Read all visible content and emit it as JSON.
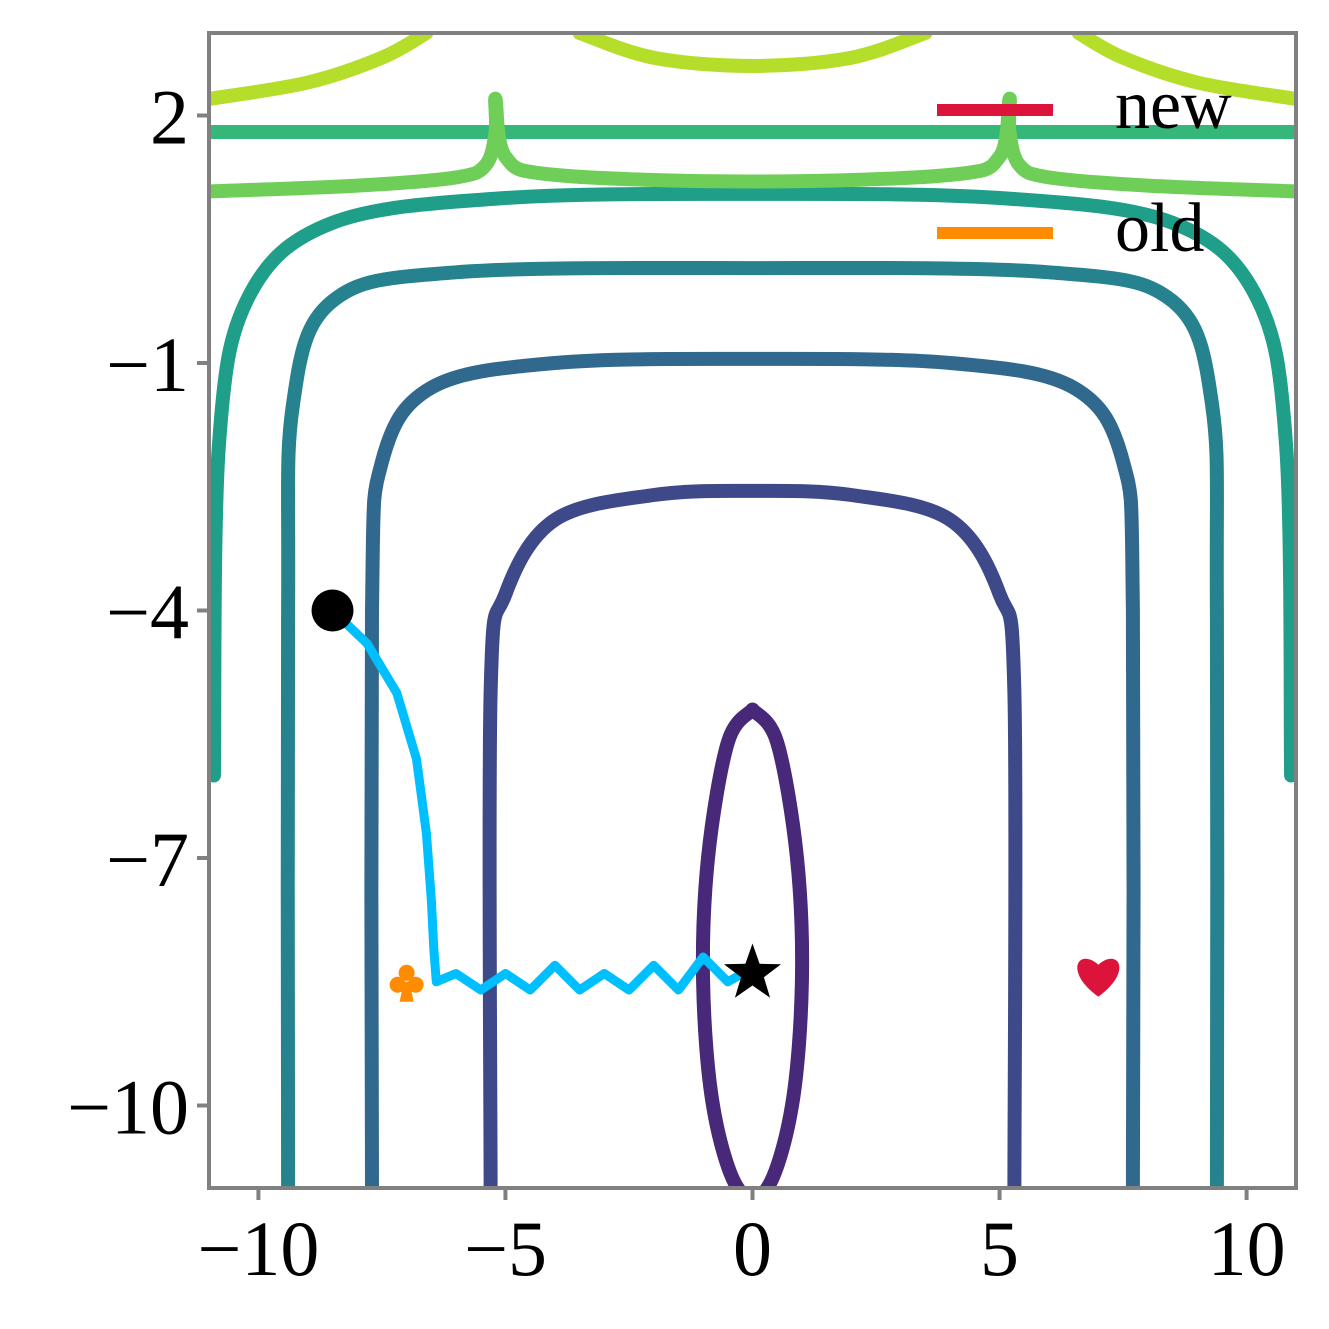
{
  "chart_data": {
    "type": "contour",
    "title": "",
    "xlabel": "",
    "ylabel": "",
    "xlim": [
      -11,
      11
    ],
    "ylim": [
      -11,
      3
    ],
    "grid": false,
    "legend": {
      "placement": "top-right",
      "entries": [
        {
          "label": "new",
          "color": "#dc143c"
        },
        {
          "label": "old",
          "color": "#ff8c00"
        }
      ]
    },
    "x_ticks": [
      {
        "value": -10,
        "label": "−10"
      },
      {
        "value": -5,
        "label": "−5"
      },
      {
        "value": 0,
        "label": "0"
      },
      {
        "value": 5,
        "label": "5"
      },
      {
        "value": 10,
        "label": "10"
      }
    ],
    "y_ticks": [
      {
        "value": 2,
        "label": "2"
      },
      {
        "value": -1,
        "label": "−1"
      },
      {
        "value": -4,
        "label": "−4"
      },
      {
        "value": -7,
        "label": "−7"
      },
      {
        "value": -10,
        "label": "−10"
      }
    ],
    "contours": [
      {
        "level": 1,
        "color": "#482878",
        "points": [
          [
            0,
            -5.2
          ],
          [
            0.5,
            -5.6
          ],
          [
            0.9,
            -7.0
          ],
          [
            1.0,
            -8.5
          ],
          [
            0.8,
            -10.0
          ],
          [
            0.3,
            -11.0
          ],
          [
            -0.3,
            -11.0
          ],
          [
            -0.8,
            -10.0
          ],
          [
            -1.0,
            -8.5
          ],
          [
            -0.9,
            -7.0
          ],
          [
            -0.5,
            -5.6
          ],
          [
            0,
            -5.2
          ]
        ]
      },
      {
        "level": 2,
        "color": "#3e4989",
        "points": [
          [
            -5.3,
            -11
          ],
          [
            -5.3,
            -5.0
          ],
          [
            -5.0,
            -3.8
          ],
          [
            -4.0,
            -2.9
          ],
          [
            -2.0,
            -2.6
          ],
          [
            0,
            -2.55
          ],
          [
            2.0,
            -2.6
          ],
          [
            4.0,
            -2.9
          ],
          [
            5.0,
            -3.8
          ],
          [
            5.3,
            -5.0
          ],
          [
            5.3,
            -11
          ]
        ]
      },
      {
        "level": 3,
        "color": "#31688e",
        "points": [
          [
            -7.7,
            -11
          ],
          [
            -7.7,
            -4.0
          ],
          [
            -7.5,
            -2.2
          ],
          [
            -6.5,
            -1.3
          ],
          [
            -4.0,
            -1.0
          ],
          [
            0,
            -0.95
          ],
          [
            4.0,
            -1.0
          ],
          [
            6.5,
            -1.3
          ],
          [
            7.5,
            -2.2
          ],
          [
            7.7,
            -4.0
          ],
          [
            7.7,
            -11
          ]
        ]
      },
      {
        "level": 4,
        "color": "#26828e",
        "points": [
          [
            -9.4,
            -11
          ],
          [
            -9.4,
            -4.0
          ],
          [
            -9.3,
            -1.5
          ],
          [
            -8.5,
            -0.25
          ],
          [
            -6.0,
            0.1
          ],
          [
            0,
            0.15
          ],
          [
            6.0,
            0.1
          ],
          [
            8.5,
            -0.25
          ],
          [
            9.3,
            -1.5
          ],
          [
            9.4,
            -4.0
          ],
          [
            9.4,
            -11
          ]
        ]
      },
      {
        "level": 5,
        "color": "#1f9e89",
        "points": [
          [
            -10.9,
            -6.0
          ],
          [
            -10.8,
            -2.0
          ],
          [
            -10.2,
            -0.2
          ],
          [
            -8.5,
            0.7
          ],
          [
            -5.0,
            1.0
          ],
          [
            0,
            1.05
          ],
          [
            5.0,
            1.0
          ],
          [
            8.5,
            0.7
          ],
          [
            10.2,
            -0.2
          ],
          [
            10.8,
            -2.0
          ],
          [
            10.9,
            -6.0
          ]
        ]
      },
      {
        "level": 6,
        "color": "#35b779",
        "points": [
          [
            -11,
            1.8
          ],
          [
            11,
            1.8
          ]
        ]
      },
      {
        "level": 7,
        "color": "#6ece58",
        "points": [
          [
            -11,
            1.08
          ],
          [
            -8,
            1.15
          ],
          [
            -6,
            1.25
          ],
          [
            -5.4,
            1.4
          ],
          [
            -5.2,
            1.8
          ],
          [
            -5.2,
            2.2
          ],
          [
            -5.0,
            1.5
          ],
          [
            -4.0,
            1.28
          ],
          [
            0,
            1.2
          ],
          [
            4.0,
            1.28
          ],
          [
            5.0,
            1.5
          ],
          [
            5.2,
            2.2
          ],
          [
            5.2,
            1.8
          ],
          [
            5.4,
            1.4
          ],
          [
            6,
            1.25
          ],
          [
            8,
            1.15
          ],
          [
            11,
            1.08
          ]
        ]
      },
      {
        "level": 8,
        "color": "#b5de2b",
        "points": [
          [
            -11,
            2.2
          ],
          [
            -9.0,
            2.4
          ],
          [
            -7.5,
            2.7
          ],
          [
            -6.6,
            3.0
          ]
        ]
      },
      {
        "level": 8,
        "color": "#b5de2b",
        "points": [
          [
            -3.5,
            3.0
          ],
          [
            -2.0,
            2.7
          ],
          [
            0,
            2.6
          ],
          [
            2.0,
            2.7
          ],
          [
            3.5,
            3.0
          ]
        ]
      },
      {
        "level": 8,
        "color": "#b5de2b",
        "points": [
          [
            6.6,
            3.0
          ],
          [
            7.5,
            2.7
          ],
          [
            9.0,
            2.4
          ],
          [
            11,
            2.2
          ]
        ]
      }
    ],
    "series": [
      {
        "color": "#00bfff",
        "points": [
          [
            -8.5,
            -4.0
          ],
          [
            -7.8,
            -4.4
          ],
          [
            -7.2,
            -5.0
          ],
          [
            -6.8,
            -5.8
          ],
          [
            -6.6,
            -6.7
          ],
          [
            -6.5,
            -7.5
          ],
          [
            -6.45,
            -8.1
          ],
          [
            -6.4,
            -8.5
          ],
          [
            -6.0,
            -8.4
          ],
          [
            -5.5,
            -8.6
          ],
          [
            -5.0,
            -8.4
          ],
          [
            -4.5,
            -8.6
          ],
          [
            -4.0,
            -8.3
          ],
          [
            -3.5,
            -8.6
          ],
          [
            -3.0,
            -8.4
          ],
          [
            -2.5,
            -8.6
          ],
          [
            -2.0,
            -8.3
          ],
          [
            -1.5,
            -8.6
          ],
          [
            -1.0,
            -8.2
          ],
          [
            -0.5,
            -8.5
          ],
          [
            -0.2,
            -8.4
          ]
        ]
      }
    ],
    "markers": [
      {
        "name": "start",
        "shape": "circle",
        "color": "#000000",
        "x": -8.5,
        "y": -4.0
      },
      {
        "name": "optimum",
        "shape": "star",
        "color": "#000000",
        "x": 0,
        "y": -8.4
      },
      {
        "name": "old",
        "shape": "club",
        "color": "#ff8c00",
        "x": -7.0,
        "y": -8.5
      },
      {
        "name": "new",
        "shape": "heart",
        "color": "#dc143c",
        "x": 7.0,
        "y": -8.4
      }
    ]
  }
}
